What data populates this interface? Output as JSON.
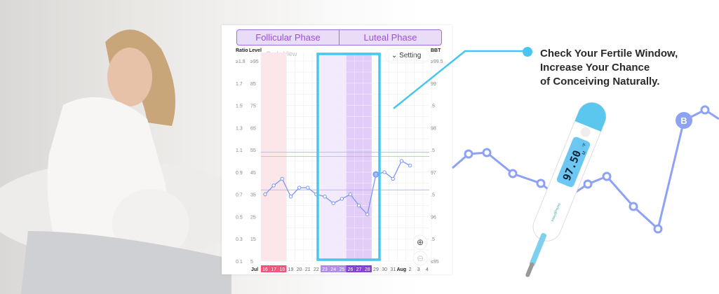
{
  "phases": {
    "follicular": "Follicular Phase",
    "luteal": "Luteal Phase"
  },
  "chart_data": {
    "type": "line",
    "view_label": "Cycle View",
    "setting_label": "Setting",
    "left_axis_ratio": {
      "label": "Ratio",
      "ticks": [
        "≥1.9",
        "1.7",
        "1.5",
        "1.3",
        "1.1",
        "0.9",
        "0.7",
        "0.5",
        "0.3",
        "0.1"
      ]
    },
    "left_axis_level": {
      "label": "Level",
      "ticks": [
        "≥95",
        "85",
        "75",
        "65",
        "55",
        "45",
        "35",
        "25",
        "15",
        "5"
      ]
    },
    "right_axis": {
      "label": "BBT",
      "ticks": [
        "≥99.5",
        "99",
        ".5",
        "98",
        ".5",
        "97",
        ".5",
        "96",
        ".5",
        "≤95"
      ],
      "ylim": [
        95,
        99.5
      ]
    },
    "x_month_labels": {
      "Jul": "Jul",
      "Aug": "Aug"
    },
    "categories": [
      "16",
      "17",
      "18",
      "19",
      "20",
      "21",
      "22",
      "23",
      "24",
      "25",
      "26",
      "27",
      "28",
      "29",
      "30",
      "31",
      "Aug",
      "2",
      "3",
      "4"
    ],
    "series": [
      {
        "values": [
          96.5,
          96.7,
          96.85,
          96.45,
          96.65,
          96.65,
          96.5,
          96.45,
          96.3,
          96.4,
          96.5,
          96.25,
          96.05,
          96.95,
          97.0,
          96.85,
          97.25,
          97.15,
          null,
          null
        ]
      }
    ],
    "reference_lines": [
      97.45,
      97.35,
      96.6
    ],
    "ovulation_marker": {
      "day": "29",
      "label": "B"
    },
    "period_days": [
      "16",
      "17",
      "18"
    ],
    "fertile_days": [
      "23",
      "24",
      "25"
    ],
    "peak_days": [
      "26",
      "27",
      "28"
    ],
    "colors": {
      "line": "#7b96f5",
      "period": "#f5527a",
      "fertile": "#b08af0",
      "peak": "#8a3be0",
      "highlight": "#49c6ef"
    }
  },
  "headline": [
    "Check Your Fertile Window,",
    "Increase Your Chance",
    "of Conceiving Naturally."
  ],
  "thermometer": {
    "reading": "97.50",
    "unit": "°F",
    "mode": "M",
    "brand": "easy@home"
  },
  "decor_marker": "B"
}
